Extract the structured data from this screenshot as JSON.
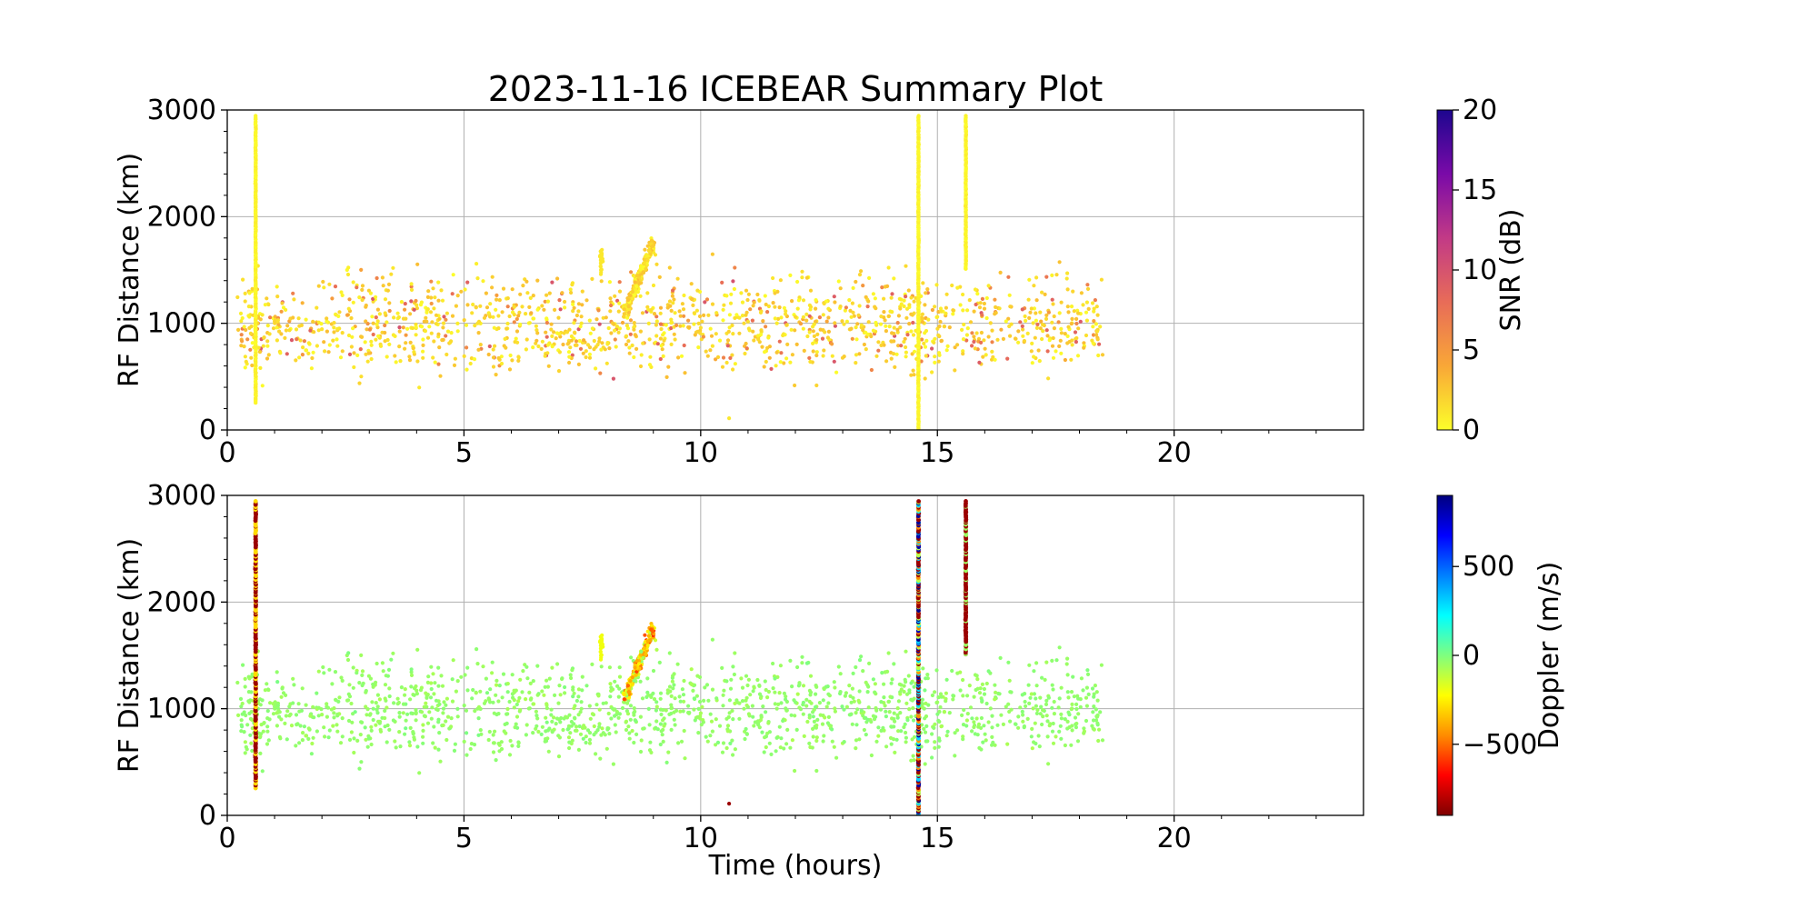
{
  "title": "2023-11-16 ICEBEAR Summary Plot",
  "chart_data": [
    {
      "type": "scatter",
      "panel": "top",
      "ylabel": "RF Distance (km)",
      "xlabel": "",
      "xlim": [
        0,
        24
      ],
      "ylim": [
        0,
        3000
      ],
      "xticks": [
        0,
        5,
        10,
        15,
        20
      ],
      "yticks": [
        0,
        1000,
        2000,
        3000
      ],
      "grid": true,
      "color_variable": "SNR (dB)",
      "colorbar": {
        "label": "SNR (dB)",
        "range": [
          0,
          20
        ],
        "ticks": [
          0,
          5,
          10,
          15,
          20
        ],
        "colormap": [
          "#fcfe2a",
          "#f9a737",
          "#e86c58",
          "#c23a86",
          "#7a0aa8",
          "#1d068f"
        ]
      },
      "distribution": {
        "background_scatter": {
          "time_range_hours": [
            0.2,
            18.5
          ],
          "range_km": [
            300,
            1850
          ],
          "typical_snr_db": 1
        },
        "vertical_streaks": [
          {
            "time_hours": 0.6,
            "range_km": [
              250,
              2950
            ],
            "snr_db": 0
          },
          {
            "time_hours": 14.6,
            "range_km": [
              0,
              2950
            ],
            "snr_db": 0
          },
          {
            "time_hours": 15.6,
            "range_km": [
              1500,
              2950
            ],
            "snr_db": 0
          }
        ],
        "dense_cluster": {
          "time_hours": [
            8.4,
            9.0
          ],
          "range_km": [
            1100,
            1750
          ],
          "snr_db": 1
        }
      }
    },
    {
      "type": "scatter",
      "panel": "bottom",
      "ylabel": "RF Distance (km)",
      "xlabel": "Time (hours)",
      "xlim": [
        0,
        24
      ],
      "ylim": [
        0,
        3000
      ],
      "xticks": [
        0,
        5,
        10,
        15,
        20
      ],
      "yticks": [
        0,
        1000,
        2000,
        3000
      ],
      "grid": true,
      "color_variable": "Doppler (m/s)",
      "colorbar": {
        "label": "Doppler (m/s)",
        "range": [
          -900,
          900
        ],
        "ticks": [
          -500,
          0,
          500
        ],
        "tick_labels": [
          "−500",
          "0",
          "500"
        ],
        "colormap": [
          "#7f0000",
          "#ff0000",
          "#ff8c00",
          "#ffff00",
          "#7fff7f",
          "#00ffff",
          "#0080ff",
          "#0000ff",
          "#00007f"
        ]
      },
      "distribution": {
        "background_scatter": {
          "time_range_hours": [
            0.2,
            18.5
          ],
          "range_km": [
            300,
            1850
          ],
          "typical_doppler_ms": 0
        },
        "vertical_streaks": [
          {
            "time_hours": 0.6,
            "range_km": [
              250,
              2950
            ],
            "doppler_ms": -700
          },
          {
            "time_hours": 14.6,
            "range_km": [
              0,
              2950
            ],
            "doppler_ms": "mixed"
          },
          {
            "time_hours": 15.6,
            "range_km": [
              1500,
              2950
            ],
            "doppler_ms": -800
          }
        ],
        "dense_cluster": {
          "time_hours": [
            8.4,
            9.0
          ],
          "range_km": [
            1100,
            1750
          ],
          "doppler_ms": -250
        }
      }
    }
  ]
}
